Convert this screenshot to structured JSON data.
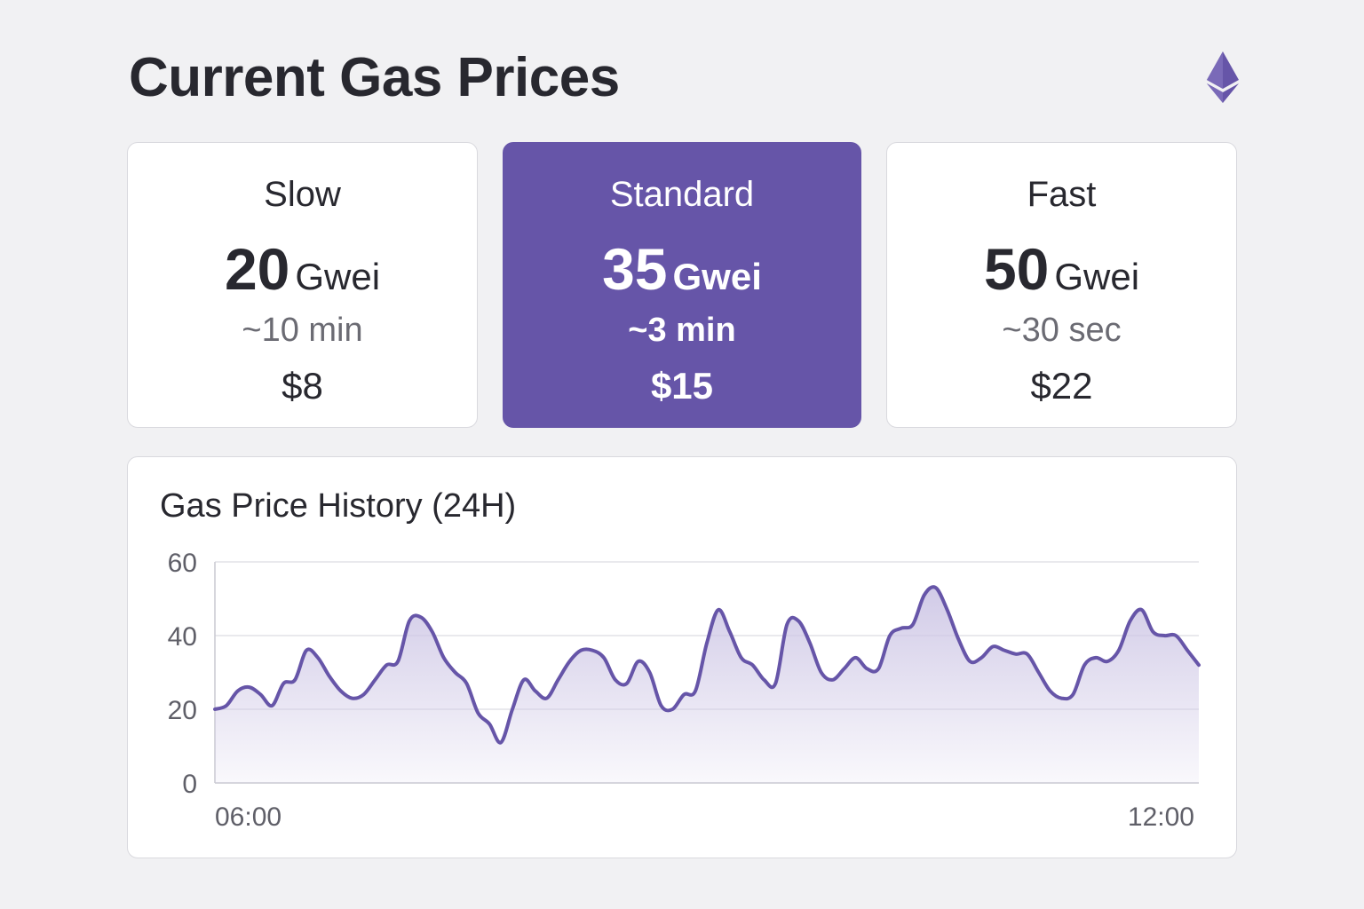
{
  "header": {
    "title": "Current Gas Prices",
    "logo_icon": "ethereum-icon",
    "logo_color": "#6655a8"
  },
  "tiers": [
    {
      "name": "Slow",
      "price": "20",
      "unit": "Gwei",
      "eta": "~10 min",
      "cost": "$8",
      "selected": false
    },
    {
      "name": "Standard",
      "price": "35",
      "unit": "Gwei",
      "eta": "~3 min",
      "cost": "$15",
      "selected": true
    },
    {
      "name": "Fast",
      "price": "50",
      "unit": "Gwei",
      "eta": "~30 sec",
      "cost": "$22",
      "selected": false
    }
  ],
  "colors": {
    "accent": "#6655a8",
    "line": "#6655a8",
    "fill": "#cfc8e6",
    "background": "#f1f1f3",
    "card": "#ffffff"
  },
  "chart": {
    "title": "Gas Price History (24H)"
  },
  "chart_data": {
    "type": "area",
    "title": "Gas Price History (24H)",
    "xlabel": "",
    "ylabel": "",
    "ylim": [
      0,
      60
    ],
    "yticks": [
      "0",
      "20",
      "40",
      "60"
    ],
    "xtick_labels": [
      "06:00",
      "12:00"
    ],
    "grid": true,
    "legend": "none",
    "series": [
      {
        "values": [
          20,
          21,
          25,
          26,
          24,
          21,
          27,
          28,
          36,
          34,
          29,
          25,
          23,
          24,
          28,
          32,
          33,
          44,
          45,
          41,
          34,
          30,
          27,
          19,
          16,
          11,
          20,
          28,
          25,
          23,
          28,
          33,
          36,
          36,
          34,
          28,
          27,
          33,
          30,
          21,
          20,
          24,
          25,
          38,
          47,
          41,
          34,
          32,
          28,
          27,
          43,
          44,
          38,
          30,
          28,
          31,
          34,
          31,
          31,
          40,
          42,
          43,
          51,
          53,
          47,
          39,
          33,
          34,
          37,
          36,
          35,
          35,
          30,
          25,
          23,
          24,
          32,
          34,
          33,
          36,
          44,
          47,
          41,
          40,
          40,
          36,
          32
        ]
      }
    ]
  }
}
